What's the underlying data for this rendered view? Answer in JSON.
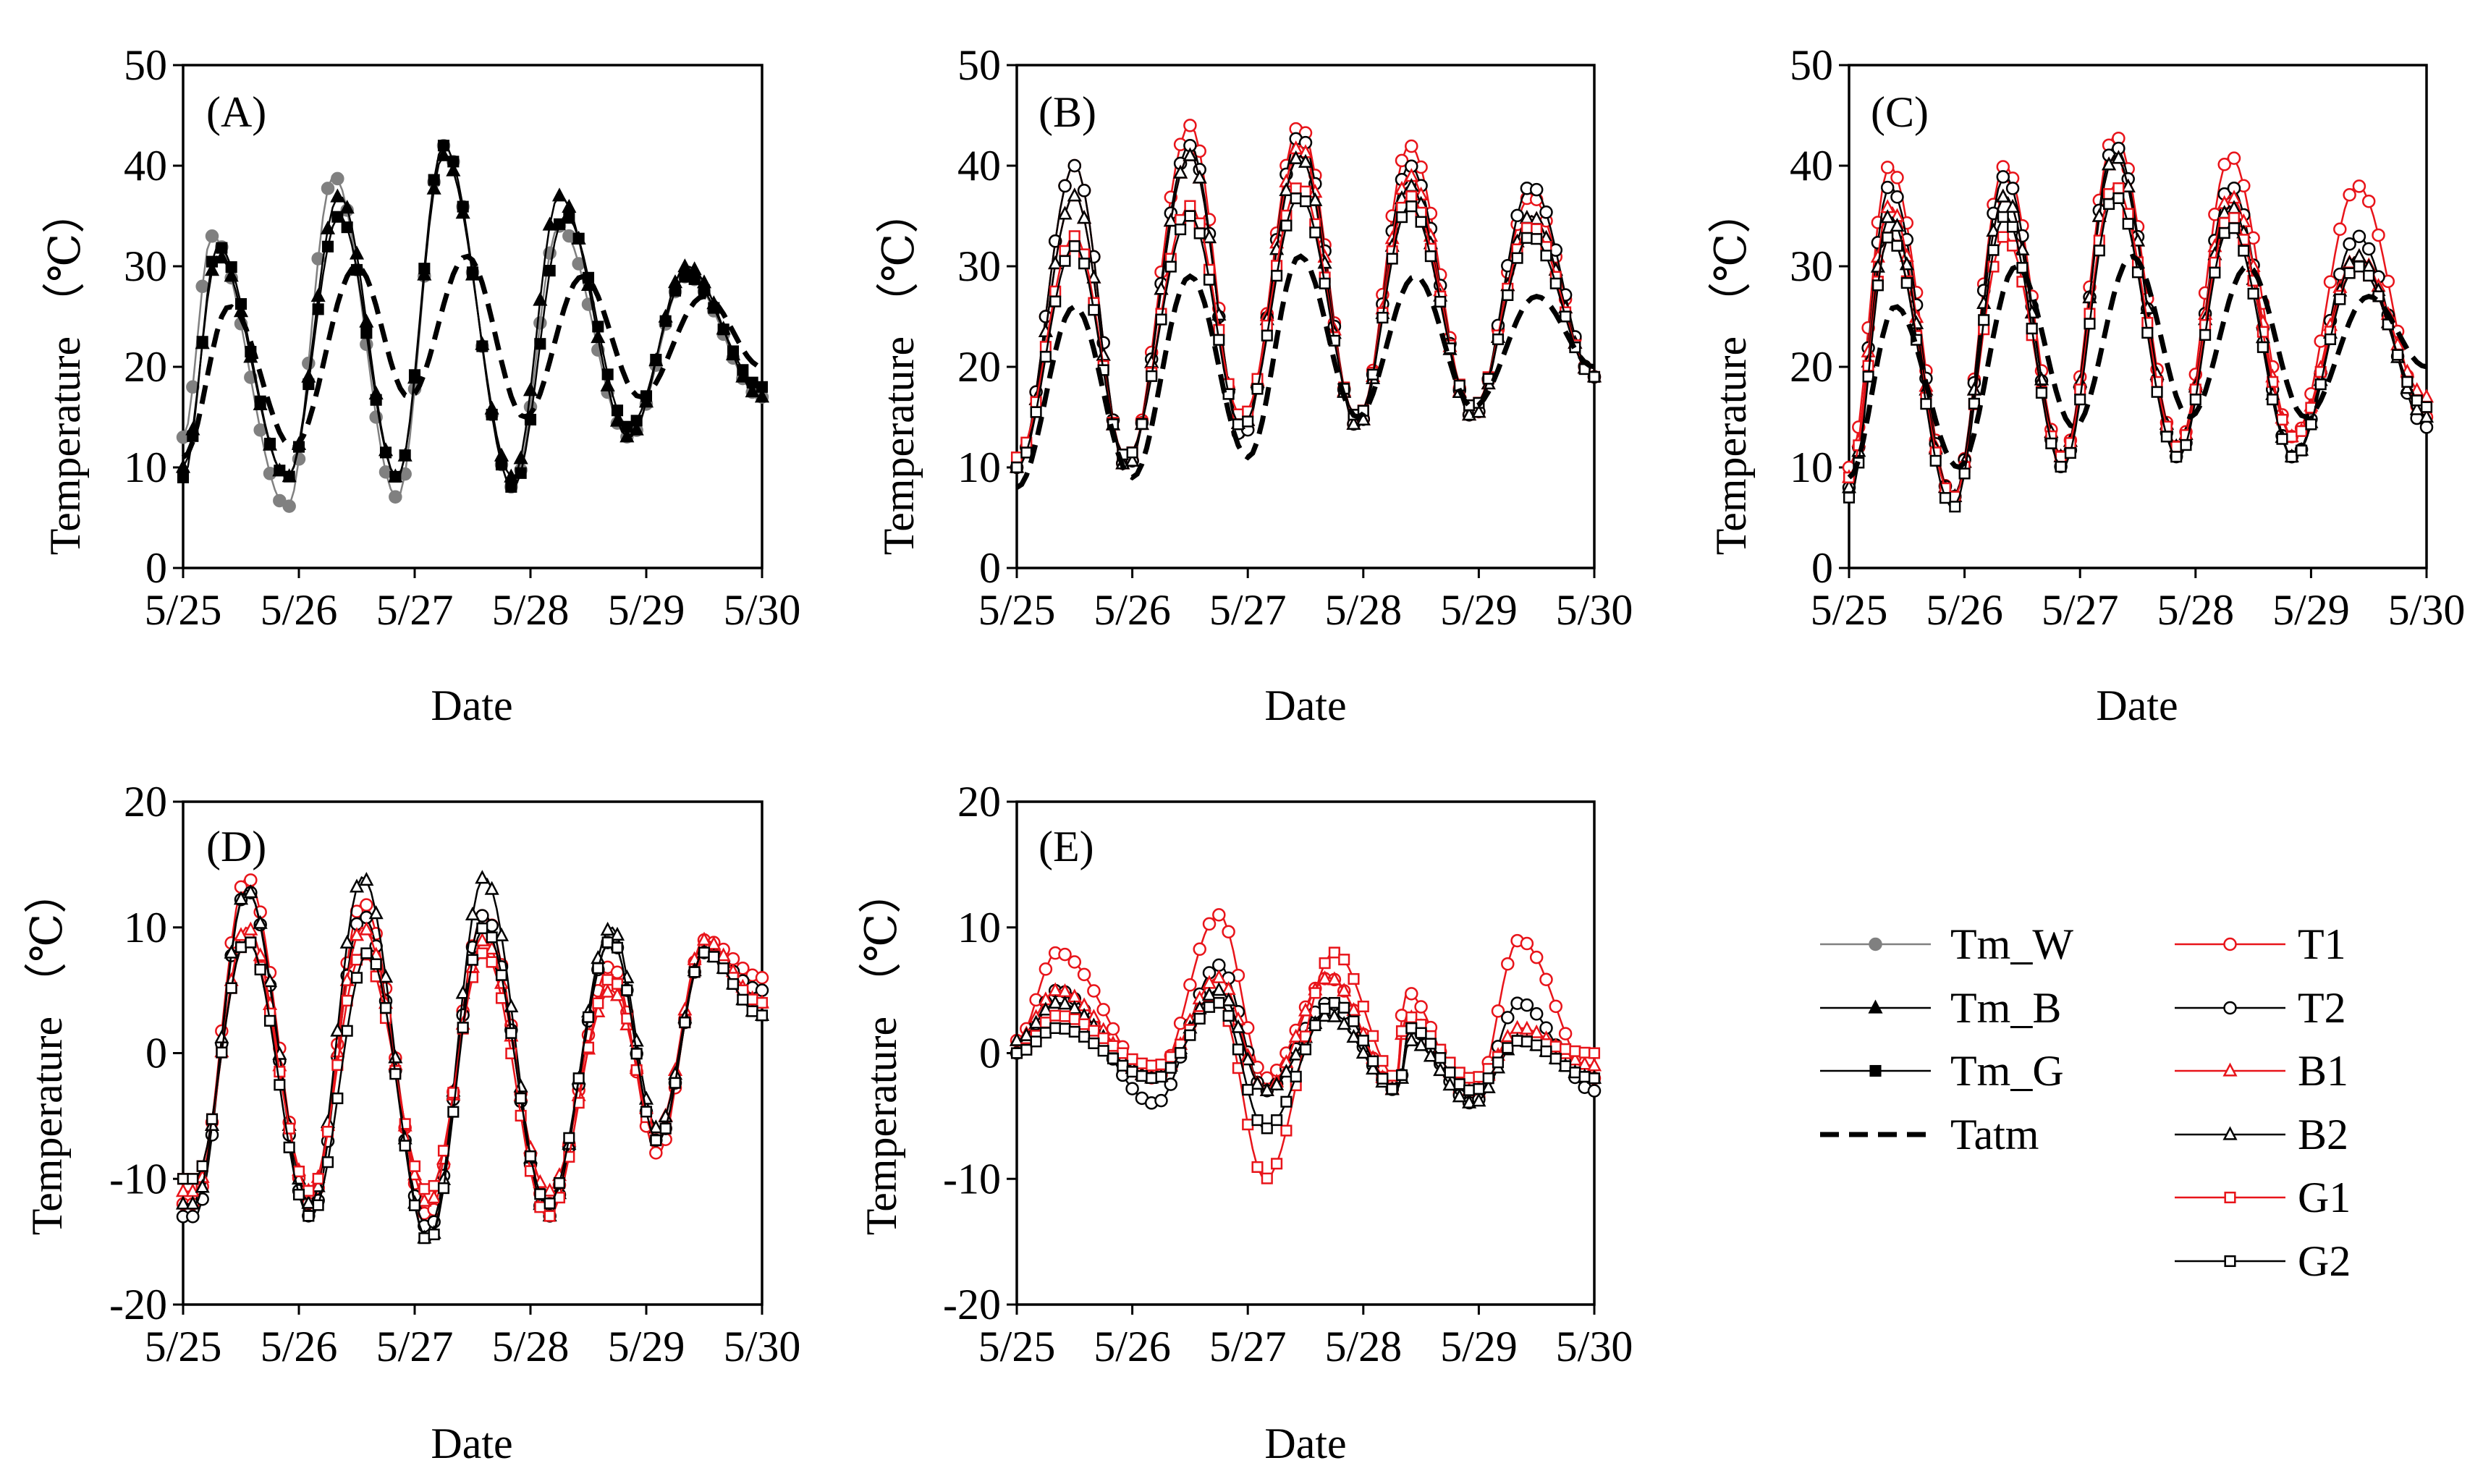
{
  "figure": {
    "xlabel": "Date",
    "ylabel": "Temperature （℃）",
    "xticks": [
      "5/25",
      "5/26",
      "5/27",
      "5/28",
      "5/29",
      "5/30"
    ]
  },
  "legend": {
    "left": [
      {
        "key": "Tm_W",
        "label": "Tm_W",
        "color": "#808080",
        "marker": "circle-filled",
        "dash": false
      },
      {
        "key": "Tm_B",
        "label": "Tm_B",
        "color": "#000000",
        "marker": "triangle-filled",
        "dash": false
      },
      {
        "key": "Tm_G",
        "label": "Tm_G",
        "color": "#000000",
        "marker": "square-filled",
        "dash": false
      },
      {
        "key": "Tatm",
        "label": "Tatm",
        "color": "#000000",
        "marker": "none",
        "dash": true
      }
    ],
    "right": [
      {
        "key": "T1",
        "label": "T1",
        "color": "#e8141a",
        "marker": "circle-open"
      },
      {
        "key": "T2",
        "label": "T2",
        "color": "#000000",
        "marker": "circle-open"
      },
      {
        "key": "B1",
        "label": "B1",
        "color": "#e8141a",
        "marker": "triangle-open"
      },
      {
        "key": "B2",
        "label": "B2",
        "color": "#000000",
        "marker": "triangle-open"
      },
      {
        "key": "G1",
        "label": "G1",
        "color": "#e8141a",
        "marker": "square-open"
      },
      {
        "key": "G2",
        "label": "G2",
        "color": "#000000",
        "marker": "square-open"
      }
    ]
  },
  "chart_data": [
    {
      "id": "A",
      "panel_label": "(A)",
      "type": "line",
      "xlim": [
        0,
        5
      ],
      "ylim": [
        0,
        50
      ],
      "yticks": [
        0,
        10,
        20,
        30,
        40,
        50
      ],
      "peaks": [
        {
          "Tm_W": [
            0.25,
            33,
            0.9,
            6
          ],
          "Tm_B": [
            0.3,
            31,
            0.9,
            9
          ],
          "Tm_G": [
            0.3,
            32,
            0.9,
            9
          ],
          "Tatm": [
            0.4,
            26,
            0.95,
            12
          ]
        },
        {
          "Tm_W": [
            1.3,
            39,
            1.85,
            7
          ],
          "Tm_B": [
            1.35,
            37,
            1.85,
            9
          ],
          "Tm_G": [
            1.35,
            35,
            1.85,
            9
          ],
          "Tatm": [
            1.5,
            30,
            1.95,
            17
          ]
        },
        {
          "Tm_W": [
            2.25,
            42,
            2.85,
            8
          ],
          "Tm_B": [
            2.25,
            41,
            2.85,
            9
          ],
          "Tm_G": [
            2.25,
            42,
            2.85,
            8
          ],
          "Tatm": [
            2.45,
            31,
            2.95,
            15
          ]
        },
        {
          "Tm_W": [
            3.25,
            34,
            3.85,
            13
          ],
          "Tm_B": [
            3.25,
            37,
            3.85,
            13
          ],
          "Tm_G": [
            3.3,
            35,
            3.85,
            14
          ],
          "Tatm": [
            3.45,
            29,
            3.95,
            17
          ]
        },
        {
          "Tm_W": [
            4.35,
            29,
            5.0,
            17
          ],
          "Tm_B": [
            4.35,
            30,
            5.0,
            17
          ],
          "Tm_G": [
            4.35,
            29,
            5.0,
            18
          ],
          "Tatm": [
            4.5,
            27,
            5.0,
            20
          ]
        }
      ],
      "start": {
        "Tm_W": 13,
        "Tm_B": 10,
        "Tm_G": 9,
        "Tatm": 11
      }
    },
    {
      "id": "B",
      "panel_label": "(B)",
      "type": "line",
      "xlim": [
        0,
        5
      ],
      "ylim": [
        0,
        50
      ],
      "yticks": [
        0,
        10,
        20,
        30,
        40,
        50
      ],
      "peaks": [
        {
          "T1": [
            0.5,
            40,
            0.95,
            10
          ],
          "T2": [
            0.5,
            40,
            0.95,
            10
          ],
          "B1": [
            0.5,
            37,
            0.95,
            10
          ],
          "B2": [
            0.5,
            37,
            0.95,
            10
          ],
          "G1": [
            0.5,
            33,
            0.95,
            11
          ],
          "G2": [
            0.5,
            32,
            0.95,
            11
          ],
          "Tatm": [
            0.5,
            26,
            1.0,
            9
          ]
        },
        {
          "T1": [
            1.5,
            44,
            1.95,
            13
          ],
          "T2": [
            1.5,
            42,
            1.95,
            13
          ],
          "B1": [
            1.5,
            41,
            1.95,
            14
          ],
          "B2": [
            1.5,
            41,
            1.95,
            14
          ],
          "G1": [
            1.5,
            36,
            1.95,
            15
          ],
          "G2": [
            1.5,
            35,
            1.95,
            14
          ],
          "Tatm": [
            1.5,
            29,
            2.0,
            11
          ]
        },
        {
          "T1": [
            2.45,
            44,
            2.95,
            14
          ],
          "T2": [
            2.45,
            43,
            2.95,
            14
          ],
          "B1": [
            2.45,
            42,
            2.95,
            14
          ],
          "B2": [
            2.45,
            41,
            2.95,
            14
          ],
          "G1": [
            2.45,
            38,
            2.95,
            15
          ],
          "G2": [
            2.45,
            37,
            2.95,
            15
          ],
          "Tatm": [
            2.45,
            31,
            2.95,
            15
          ]
        },
        {
          "T1": [
            3.4,
            42,
            3.95,
            15
          ],
          "T2": [
            3.4,
            40,
            3.95,
            15
          ],
          "B1": [
            3.4,
            39,
            3.95,
            15
          ],
          "B2": [
            3.4,
            38,
            3.95,
            15
          ],
          "G1": [
            3.4,
            37,
            3.95,
            16
          ],
          "G2": [
            3.4,
            36,
            3.95,
            16
          ],
          "Tatm": [
            3.45,
            29,
            3.95,
            16
          ]
        },
        {
          "T1": [
            4.45,
            37,
            5.0,
            19
          ],
          "T2": [
            4.45,
            38,
            5.0,
            19
          ],
          "B1": [
            4.45,
            35,
            5.0,
            19
          ],
          "B2": [
            4.45,
            35,
            5.0,
            19
          ],
          "G1": [
            4.45,
            34,
            5.0,
            19
          ],
          "G2": [
            4.45,
            33,
            5.0,
            19
          ],
          "Tatm": [
            4.5,
            27,
            5.0,
            20
          ]
        }
      ],
      "start": {
        "T1": 10,
        "T2": 10,
        "B1": 10,
        "B2": 10,
        "G1": 11,
        "G2": 10,
        "Tatm": 8
      }
    },
    {
      "id": "C",
      "panel_label": "(C)",
      "type": "line",
      "xlim": [
        0,
        5
      ],
      "ylim": [
        0,
        50
      ],
      "yticks": [
        0,
        10,
        20,
        30,
        40,
        50
      ],
      "peaks": [
        {
          "T1": [
            0.35,
            40,
            0.9,
            7
          ],
          "T2": [
            0.35,
            38,
            0.9,
            7
          ],
          "B1": [
            0.35,
            36,
            0.9,
            7
          ],
          "B2": [
            0.35,
            35,
            0.9,
            7
          ],
          "G1": [
            0.35,
            33,
            0.9,
            7
          ],
          "G2": [
            0.35,
            33,
            0.9,
            6
          ],
          "Tatm": [
            0.4,
            26,
            0.95,
            10
          ]
        },
        {
          "T1": [
            1.35,
            40,
            1.85,
            11
          ],
          "T2": [
            1.35,
            39,
            1.85,
            10
          ],
          "B1": [
            1.35,
            37,
            1.85,
            11
          ],
          "B2": [
            1.35,
            37,
            1.85,
            11
          ],
          "G1": [
            1.35,
            33,
            1.85,
            11
          ],
          "G2": [
            1.35,
            35,
            1.85,
            10
          ],
          "Tatm": [
            1.45,
            30,
            1.95,
            14
          ]
        },
        {
          "T1": [
            2.3,
            43,
            2.85,
            12
          ],
          "T2": [
            2.3,
            42,
            2.85,
            11
          ],
          "B1": [
            2.3,
            41,
            2.85,
            12
          ],
          "B2": [
            2.3,
            41,
            2.85,
            12
          ],
          "G1": [
            2.3,
            38,
            2.85,
            12
          ],
          "G2": [
            2.3,
            37,
            2.85,
            11
          ],
          "Tatm": [
            2.45,
            31,
            2.95,
            15
          ]
        },
        {
          "T1": [
            3.3,
            41,
            3.85,
            13
          ],
          "T2": [
            3.3,
            38,
            3.85,
            11
          ],
          "B1": [
            3.3,
            37,
            3.85,
            13
          ],
          "B2": [
            3.3,
            36,
            3.85,
            11
          ],
          "G1": [
            3.3,
            35,
            3.85,
            13
          ],
          "G2": [
            3.3,
            34,
            3.85,
            11
          ],
          "Tatm": [
            3.45,
            30,
            3.95,
            15
          ]
        },
        {
          "T1": [
            4.4,
            38,
            5.0,
            15
          ],
          "T2": [
            4.4,
            33,
            5.0,
            14
          ],
          "B1": [
            4.4,
            31,
            5.0,
            17
          ],
          "B2": [
            4.4,
            31,
            5.0,
            15
          ],
          "G1": [
            4.4,
            30,
            5.0,
            16
          ],
          "G2": [
            4.4,
            30,
            5.0,
            16
          ],
          "Tatm": [
            4.5,
            27,
            5.0,
            20
          ]
        }
      ],
      "start": {
        "T1": 10,
        "T2": 8,
        "B1": 9,
        "B2": 8,
        "G1": 9,
        "G2": 7,
        "Tatm": 9
      }
    },
    {
      "id": "D",
      "panel_label": "(D)",
      "type": "line",
      "xlim": [
        0,
        5
      ],
      "ylim": [
        -20,
        20
      ],
      "yticks": [
        -20,
        -10,
        0,
        10,
        20
      ],
      "peaks": [
        {
          "T1": [
            0.55,
            14,
            0.1,
            -12
          ],
          "T2": [
            0.55,
            13,
            0.1,
            -13
          ],
          "B1": [
            0.55,
            10,
            0.1,
            -11
          ],
          "B2": [
            0.55,
            13,
            0.1,
            -12
          ],
          "G1": [
            0.55,
            9,
            0.1,
            -10
          ],
          "G2": [
            0.55,
            9,
            0.1,
            -10
          ]
        },
        {
          "T1": [
            1.55,
            12,
            1.1,
            -12
          ],
          "T2": [
            1.55,
            11,
            1.1,
            -13
          ],
          "B1": [
            1.55,
            10,
            1.1,
            -11
          ],
          "B2": [
            1.55,
            14,
            1.1,
            -12
          ],
          "G1": [
            1.55,
            8,
            1.1,
            -11
          ],
          "G2": [
            1.6,
            8,
            1.1,
            -13
          ]
        },
        {
          "T1": [
            2.6,
            11,
            2.12,
            -13
          ],
          "T2": [
            2.6,
            11,
            2.12,
            -14
          ],
          "B1": [
            2.6,
            9,
            2.12,
            -12
          ],
          "B2": [
            2.6,
            14,
            2.12,
            -15
          ],
          "G1": [
            2.6,
            8,
            2.12,
            -11
          ],
          "G2": [
            2.6,
            10,
            2.12,
            -15
          ]
        },
        {
          "T1": [
            3.7,
            7,
            3.15,
            -12
          ],
          "T2": [
            3.7,
            9,
            3.15,
            -13
          ],
          "B1": [
            3.7,
            5,
            3.15,
            -11
          ],
          "B2": [
            3.7,
            10,
            3.15,
            -13
          ],
          "G1": [
            3.7,
            6,
            3.15,
            -13
          ],
          "G2": [
            3.7,
            9,
            3.15,
            -12
          ]
        },
        {
          "T1": [
            4.5,
            9,
            4.1,
            -8
          ],
          "T2": [
            4.5,
            8,
            4.1,
            -7
          ],
          "B1": [
            4.5,
            9,
            4.1,
            -6
          ],
          "B2": [
            4.5,
            8,
            4.1,
            -6
          ],
          "G1": [
            4.5,
            8,
            4.1,
            -7
          ],
          "G2": [
            4.5,
            8,
            4.1,
            -7
          ]
        }
      ],
      "end": {
        "T1": 6,
        "T2": 5,
        "B1": 4,
        "B2": 3,
        "G1": 4,
        "G2": 3
      }
    },
    {
      "id": "E",
      "panel_label": "(E)",
      "type": "line",
      "xlim": [
        0,
        5
      ],
      "ylim": [
        -20,
        20
      ],
      "yticks": [
        -20,
        -10,
        0,
        10,
        20
      ],
      "peaks": [
        {
          "T1": [
            0.35,
            8,
            1.2,
            -2
          ],
          "T2": [
            0.35,
            5,
            1.2,
            -4
          ],
          "B1": [
            0.35,
            5,
            1.2,
            -2
          ],
          "B2": [
            0.35,
            4,
            1.2,
            -2
          ],
          "G1": [
            0.35,
            3,
            1.2,
            -1
          ],
          "G2": [
            0.35,
            2,
            1.2,
            -2
          ]
        },
        {
          "T1": [
            1.75,
            11,
            2.15,
            -2
          ],
          "T2": [
            1.75,
            7,
            2.15,
            -3
          ],
          "B1": [
            1.75,
            6,
            2.15,
            -3
          ],
          "B2": [
            1.75,
            5,
            2.15,
            -3
          ],
          "G1": [
            1.75,
            4,
            2.15,
            -10
          ],
          "G2": [
            1.75,
            4,
            2.15,
            -6
          ]
        },
        {
          "T1": [
            2.7,
            6,
            3.3,
            -3
          ],
          "T2": [
            2.7,
            4,
            3.3,
            -3
          ],
          "B1": [
            2.7,
            6,
            3.3,
            -3
          ],
          "B2": [
            2.7,
            3,
            3.3,
            -3
          ],
          "G1": [
            2.75,
            8,
            3.3,
            -2
          ],
          "G2": [
            2.75,
            4,
            3.3,
            -3
          ]
        },
        {
          "T1": [
            3.35,
            5,
            3.95,
            -4
          ],
          "T2": [
            3.4,
            2,
            3.95,
            -4
          ],
          "B1": [
            3.35,
            3,
            3.95,
            -3
          ],
          "B2": [
            3.4,
            1,
            3.95,
            -4
          ],
          "G1": [
            3.35,
            3,
            3.95,
            -2
          ],
          "G2": [
            3.4,
            2,
            3.95,
            -3
          ]
        },
        {
          "T1": [
            4.35,
            9,
            5.0,
            -2
          ],
          "T2": [
            4.35,
            4,
            5.0,
            -3
          ],
          "B1": [
            4.35,
            2,
            5.0,
            -1
          ],
          "B2": [
            4.35,
            1,
            5.0,
            -2
          ],
          "G1": [
            4.35,
            1,
            5.0,
            0
          ],
          "G2": [
            4.35,
            1,
            5.0,
            -2
          ]
        }
      ],
      "start": {
        "T1": 1,
        "T2": 0,
        "B1": 1,
        "B2": 1,
        "G1": 0,
        "G2": 0
      }
    }
  ]
}
